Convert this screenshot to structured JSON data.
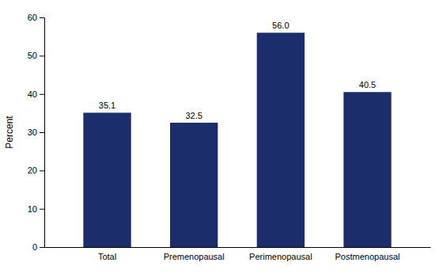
{
  "chart_data": {
    "type": "bar",
    "categories": [
      "Total",
      "Premenopausal",
      "Perimenopausal",
      "Postmenopausal"
    ],
    "values": [
      35.1,
      32.5,
      56.0,
      40.5
    ],
    "value_labels": [
      "35.1",
      "32.5",
      "56.0",
      "40.5"
    ],
    "color": "#1B2E6B",
    "ylabel": "Percent",
    "ylim": [
      0,
      60
    ],
    "yticks": [
      0,
      10,
      20,
      30,
      40,
      50,
      60
    ],
    "grid": false,
    "data_labels": true
  }
}
